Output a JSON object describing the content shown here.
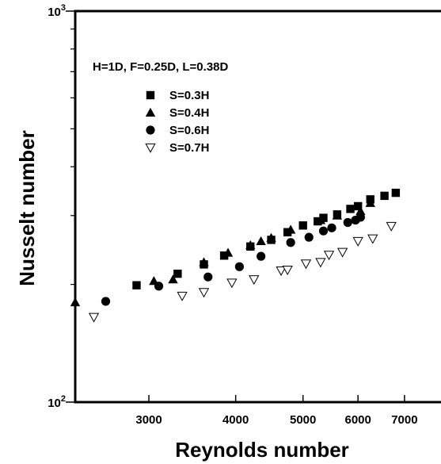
{
  "chart_data": {
    "type": "scatter",
    "xlabel": "Reynolds number",
    "ylabel": "Nusselt number",
    "xscale": "log",
    "yscale": "log",
    "xlim": [
      2350,
      7900
    ],
    "ylim": [
      100,
      1000
    ],
    "x_ticks": [
      3000,
      4000,
      5000,
      6000,
      7000
    ],
    "x_tick_labels": [
      "3000",
      "4000",
      "5000",
      "6000",
      "7000"
    ],
    "y_ticks": [
      100,
      1000
    ],
    "y_tick_labels": [
      {
        "base": "10",
        "exp": "2"
      },
      {
        "base": "10",
        "exp": "3"
      }
    ],
    "annotation": "H=1D, F=0.25D, L=0.38D",
    "legend_position": "top-left",
    "grid": false,
    "series": [
      {
        "name": "S=0.3H",
        "marker": "square-filled",
        "points": [
          [
            2880,
            199
          ],
          [
            3300,
            213
          ],
          [
            3600,
            225
          ],
          [
            3850,
            237
          ],
          [
            4200,
            250
          ],
          [
            4500,
            260
          ],
          [
            4750,
            272
          ],
          [
            5000,
            283
          ],
          [
            5250,
            290
          ],
          [
            5350,
            296
          ],
          [
            5600,
            302
          ],
          [
            5850,
            312
          ],
          [
            6000,
            317
          ],
          [
            6250,
            330
          ],
          [
            6550,
            337
          ],
          [
            6800,
            343
          ]
        ]
      },
      {
        "name": "S=0.4H",
        "marker": "triangle-up-filled",
        "points": [
          [
            2350,
            180
          ],
          [
            3050,
            204
          ],
          [
            3250,
            206
          ],
          [
            3600,
            228
          ],
          [
            3900,
            241
          ],
          [
            4200,
            252
          ],
          [
            4350,
            258
          ],
          [
            4500,
            263
          ],
          [
            4800,
            276
          ],
          [
            5300,
            292
          ],
          [
            5600,
            300
          ],
          [
            6050,
            308
          ],
          [
            6250,
            323
          ]
        ]
      },
      {
        "name": "S=0.6H",
        "marker": "circle-filled",
        "points": [
          [
            2600,
            181
          ],
          [
            3100,
            198
          ],
          [
            3650,
            209
          ],
          [
            4050,
            222
          ],
          [
            4350,
            236
          ],
          [
            4800,
            256
          ],
          [
            5100,
            264
          ],
          [
            5350,
            274
          ],
          [
            5500,
            279
          ],
          [
            5800,
            288
          ],
          [
            5950,
            292
          ],
          [
            6050,
            297
          ]
        ]
      },
      {
        "name": "S=0.7H",
        "marker": "triangle-down-open",
        "points": [
          [
            2500,
            165
          ],
          [
            3350,
            187
          ],
          [
            3600,
            191
          ],
          [
            3950,
            202
          ],
          [
            4250,
            206
          ],
          [
            4650,
            217
          ],
          [
            4750,
            218
          ],
          [
            5050,
            226
          ],
          [
            5300,
            228
          ],
          [
            5450,
            238
          ],
          [
            5700,
            242
          ],
          [
            6000,
            258
          ],
          [
            6300,
            262
          ],
          [
            6700,
            282
          ]
        ]
      }
    ]
  }
}
